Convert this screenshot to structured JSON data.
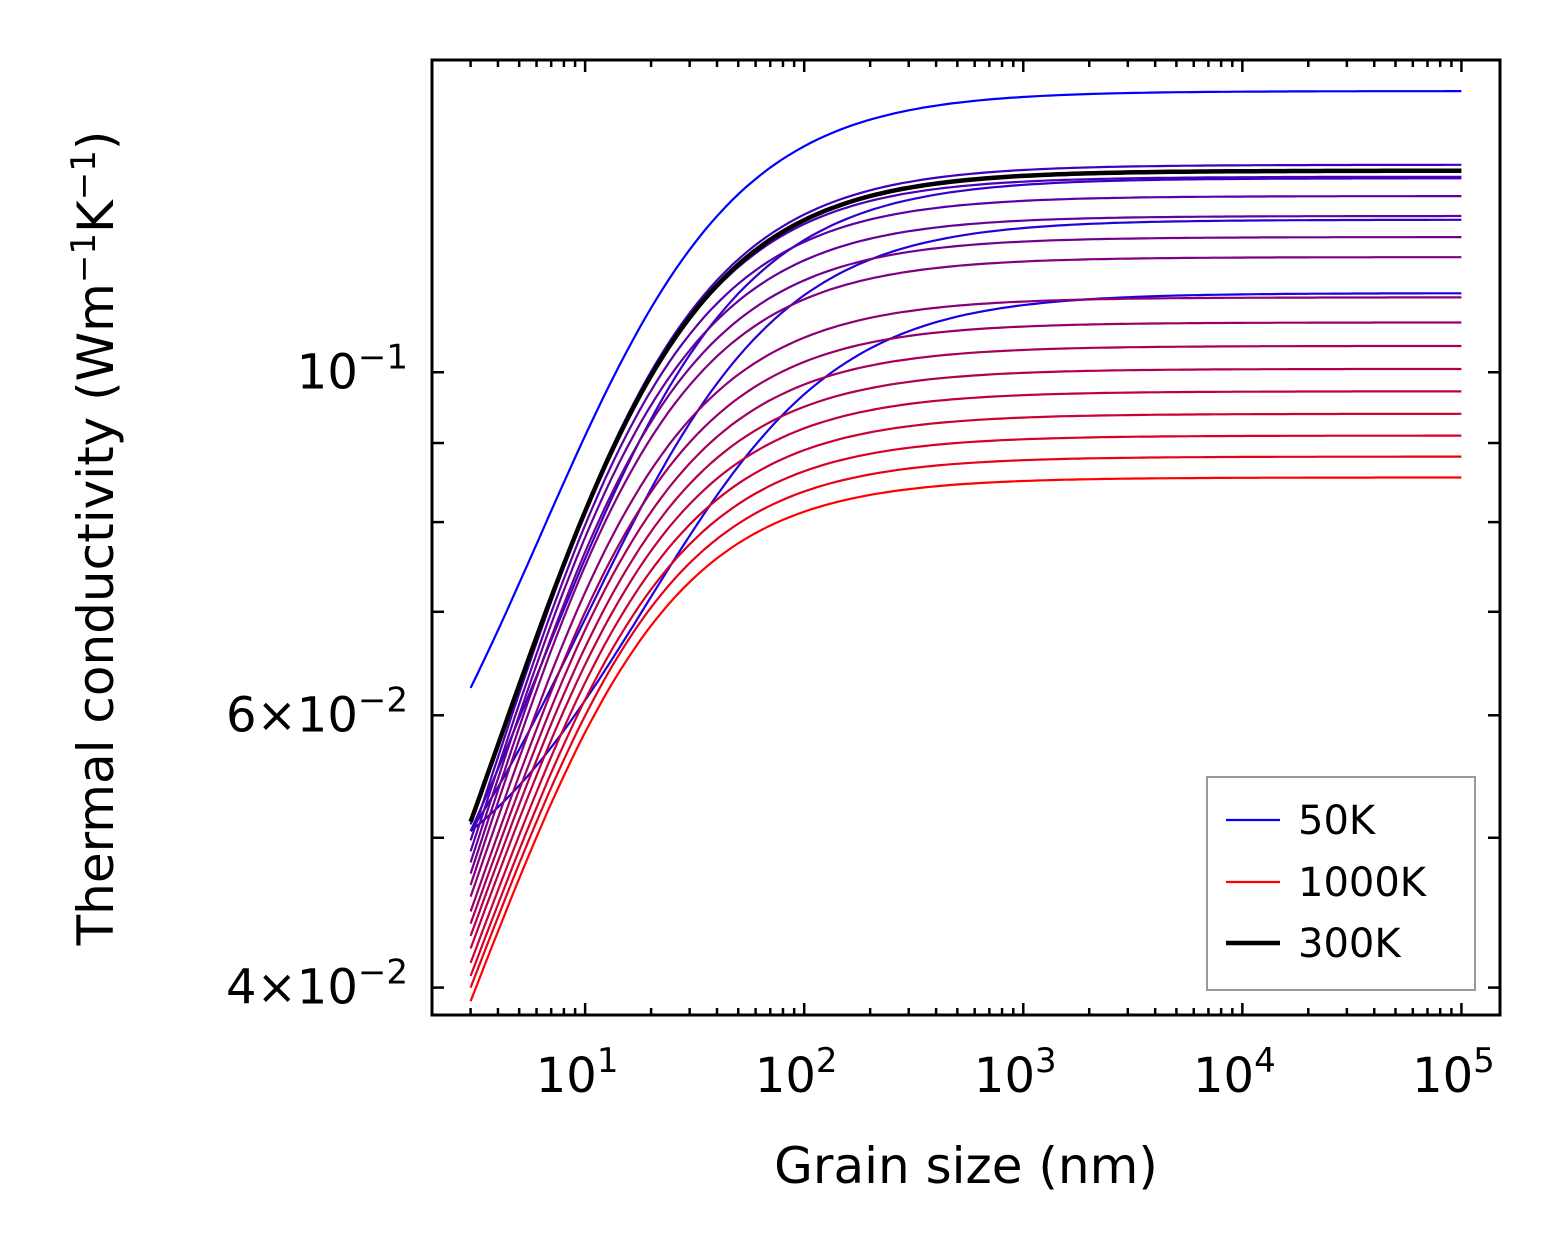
{
  "chart_data": {
    "type": "line",
    "xscale": "log",
    "yscale": "log",
    "xlabel": "Grain size (nm)",
    "ylabel": "Thermal conductivity (Wm",
    "ylabel_unit_parts": [
      "−1",
      "K",
      "−1",
      ")"
    ],
    "xlim": [
      2,
      150000
    ],
    "ylim": [
      0.0384,
      0.1592
    ],
    "x_ticks": [
      {
        "base": "10",
        "exp": "1"
      },
      {
        "base": "10",
        "exp": "2"
      },
      {
        "base": "10",
        "exp": "3"
      },
      {
        "base": "10",
        "exp": "4"
      },
      {
        "base": "10",
        "exp": "5"
      }
    ],
    "y_ticks": [
      {
        "mantissa": "",
        "base": "10",
        "exp": "−1",
        "value": 0.1
      },
      {
        "mantissa": "6×",
        "base": "10",
        "exp": "−2",
        "value": 0.06
      },
      {
        "mantissa": "4×",
        "base": "10",
        "exp": "−2",
        "value": 0.04
      }
    ],
    "series": [
      {
        "name": "50K",
        "color": "#0000ff",
        "x_start": 3,
        "x_end": 100000,
        "y_start": 0.0625,
        "y_plateau": 0.152,
        "x_half": 12
      },
      {
        "name": "",
        "color": "#1a00e5",
        "x_start": 3,
        "x_end": 100000,
        "y_start": 0.0505,
        "y_plateau": 0.1125,
        "x_half": 30
      },
      {
        "name": "",
        "color": "#2600d9",
        "x_start": 3,
        "x_end": 100000,
        "y_start": 0.0505,
        "y_plateau": 0.1255,
        "x_half": 18
      },
      {
        "name": "",
        "color": "#3300cc",
        "x_start": 3,
        "x_end": 100000,
        "y_start": 0.0505,
        "y_plateau": 0.1335,
        "x_half": 13
      },
      {
        "name": "",
        "color": "#4000bf",
        "x_start": 3,
        "x_end": 100000,
        "y_start": 0.051,
        "y_plateau": 0.1362,
        "x_half": 9.5
      },
      {
        "name": "",
        "color": "#4d00b2",
        "x_start": 3,
        "x_end": 100000,
        "y_start": 0.0498,
        "y_plateau": 0.1338,
        "x_half": 8.8
      },
      {
        "name": "",
        "color": "#5900a6",
        "x_start": 3,
        "x_end": 100000,
        "y_start": 0.049,
        "y_plateau": 0.13,
        "x_half": 8.5
      },
      {
        "name": "",
        "color": "#660099",
        "x_start": 3,
        "x_end": 100000,
        "y_start": 0.0482,
        "y_plateau": 0.1262,
        "x_half": 8.2
      },
      {
        "name": "",
        "color": "#73008c",
        "x_start": 3,
        "x_end": 100000,
        "y_start": 0.0474,
        "y_plateau": 0.1223,
        "x_half": 8.0
      },
      {
        "name": "",
        "color": "#800080",
        "x_start": 3,
        "x_end": 100000,
        "y_start": 0.0466,
        "y_plateau": 0.1187,
        "x_half": 7.8
      },
      {
        "name": "",
        "color": "#8c0073",
        "x_start": 3,
        "x_end": 100000,
        "y_start": 0.0458,
        "y_plateau": 0.1118,
        "x_half": 7.6
      },
      {
        "name": "",
        "color": "#990066",
        "x_start": 3,
        "x_end": 100000,
        "y_start": 0.0448,
        "y_plateau": 0.1077,
        "x_half": 7.5
      },
      {
        "name": "",
        "color": "#a60059",
        "x_start": 3,
        "x_end": 100000,
        "y_start": 0.044,
        "y_plateau": 0.104,
        "x_half": 7.4
      },
      {
        "name": "",
        "color": "#b2004d",
        "x_start": 3,
        "x_end": 100000,
        "y_start": 0.0432,
        "y_plateau": 0.1005,
        "x_half": 7.3
      },
      {
        "name": "",
        "color": "#bf0040",
        "x_start": 3,
        "x_end": 100000,
        "y_start": 0.0424,
        "y_plateau": 0.0972,
        "x_half": 7.2
      },
      {
        "name": "",
        "color": "#cc0033",
        "x_start": 3,
        "x_end": 100000,
        "y_start": 0.0415,
        "y_plateau": 0.094,
        "x_half": 7.1
      },
      {
        "name": "",
        "color": "#d90026",
        "x_start": 3,
        "x_end": 100000,
        "y_start": 0.0407,
        "y_plateau": 0.091,
        "x_half": 7.0
      },
      {
        "name": "",
        "color": "#e6001a",
        "x_start": 3,
        "x_end": 100000,
        "y_start": 0.04,
        "y_plateau": 0.0882,
        "x_half": 6.9
      },
      {
        "name": "1000K",
        "color": "#ff0000",
        "x_start": 3,
        "x_end": 100000,
        "y_start": 0.0392,
        "y_plateau": 0.0855,
        "x_half": 6.8
      },
      {
        "name": "300K",
        "color": "#000000",
        "x_start": 3,
        "x_end": 100000,
        "y_start": 0.0512,
        "y_plateau": 0.135,
        "x_half": 9.5,
        "bold": true
      }
    ],
    "legend": {
      "position": "lower-right",
      "entries": [
        {
          "label": "50K",
          "color": "#0000ff",
          "bold": false
        },
        {
          "label": "1000K",
          "color": "#ff0000",
          "bold": false
        },
        {
          "label": "300K",
          "color": "#000000",
          "bold": true
        }
      ]
    }
  }
}
